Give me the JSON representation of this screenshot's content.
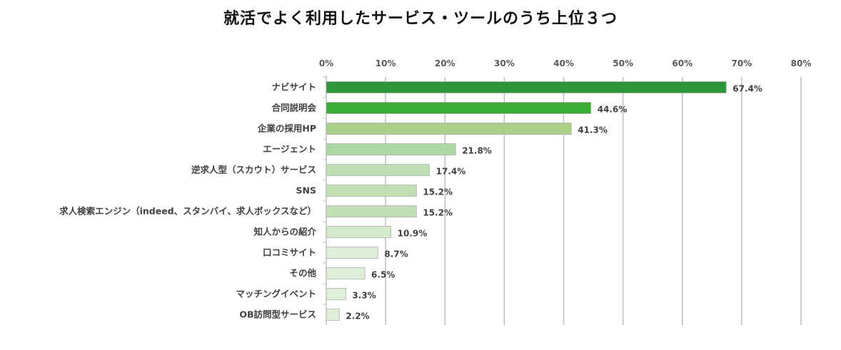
{
  "chart_data": {
    "type": "bar",
    "orientation": "horizontal",
    "title": "就活でよく利用したサービス・ツールのうち上位３つ",
    "xlabel": "",
    "ylabel": "",
    "xlim": [
      0,
      80
    ],
    "x_ticks": [
      "0%",
      "10%",
      "20%",
      "30%",
      "40%",
      "50%",
      "60%",
      "70%",
      "80%"
    ],
    "x_axis_position": "top",
    "grid": true,
    "categories": [
      "ナビサイト",
      "合同説明会",
      "企業の採用HP",
      "エージェント",
      "逆求人型（スカウト）サービス",
      "SNS",
      "求人検索エンジン（indeed、スタンバイ、求人ボックスなど）",
      "知人からの紹介",
      "口コミサイト",
      "その他",
      "マッチングイベント",
      "OB訪問型サービス"
    ],
    "values": [
      67.4,
      44.6,
      41.3,
      21.8,
      17.4,
      15.2,
      15.2,
      10.9,
      8.7,
      6.5,
      3.3,
      2.2
    ],
    "data_labels": [
      "67.4%",
      "44.6%",
      "41.3%",
      "21.8%",
      "17.4%",
      "15.2%",
      "15.2%",
      "10.9%",
      "8.7%",
      "6.5%",
      "3.3%",
      "2.2%"
    ],
    "colors": [
      "#2e963a",
      "#3aae37",
      "#a9d086",
      "#acd8a2",
      "#c0e0b4",
      "#c0e0b4",
      "#c0e0b4",
      "#d4ebcb",
      "#deefd8",
      "#deefd8",
      "#deefd8",
      "#deefd8"
    ]
  }
}
